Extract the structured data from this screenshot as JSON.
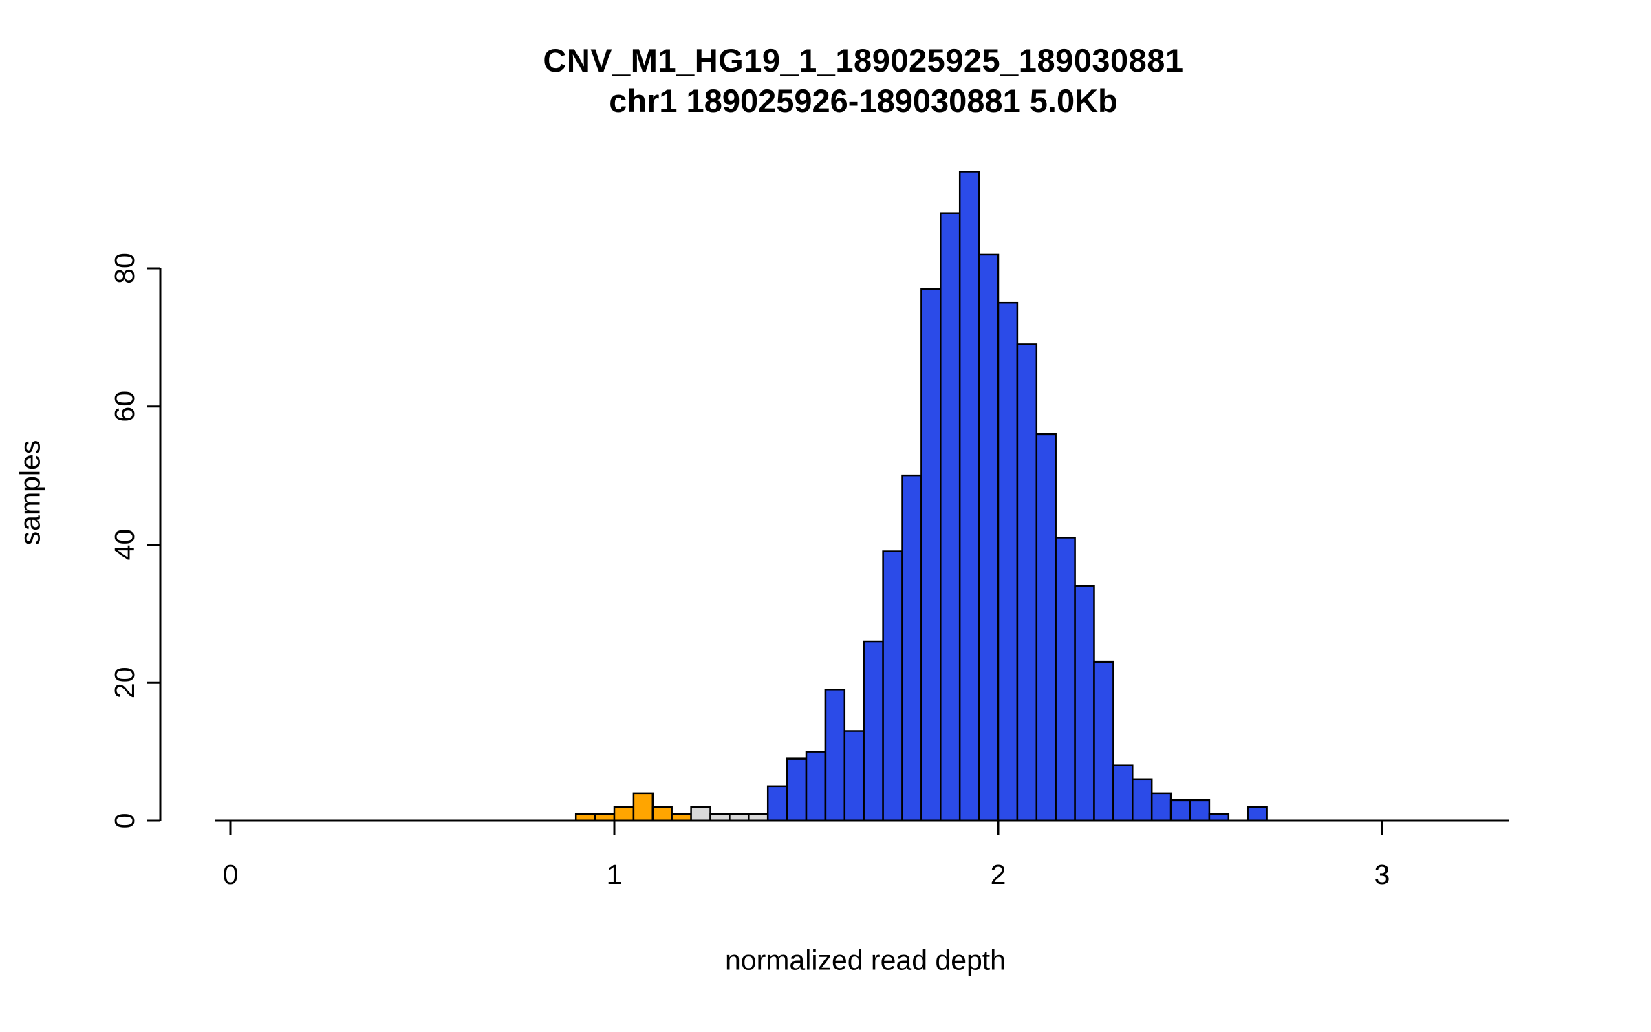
{
  "chart_data": {
    "type": "bar",
    "subtype": "histogram",
    "title": "CNV_M1_HG19_1_189025925_189030881",
    "subtitle": "chr1 189025926-189030881 5.0Kb",
    "xlabel": "normalized read depth",
    "ylabel": "samples",
    "bin_width": 0.05,
    "x_ticks": [
      0,
      1,
      2,
      3
    ],
    "y_ticks": [
      0,
      20,
      40,
      60,
      80
    ],
    "xlim": [
      -0.04,
      3.33
    ],
    "ylim": [
      0,
      94
    ],
    "grid": false,
    "legend": "none",
    "colors": {
      "orange": "#FFA500",
      "gray": "#D9D9D9",
      "blue": "#2B4BE8",
      "axis": "#000000",
      "bar_border": "#000000"
    },
    "bars": [
      {
        "x": 0.9,
        "count": 1,
        "color": "orange"
      },
      {
        "x": 0.95,
        "count": 1,
        "color": "orange"
      },
      {
        "x": 1.0,
        "count": 2,
        "color": "orange"
      },
      {
        "x": 1.05,
        "count": 4,
        "color": "orange"
      },
      {
        "x": 1.1,
        "count": 2,
        "color": "orange"
      },
      {
        "x": 1.15,
        "count": 1,
        "color": "orange"
      },
      {
        "x": 1.2,
        "count": 2,
        "color": "gray"
      },
      {
        "x": 1.25,
        "count": 1,
        "color": "gray"
      },
      {
        "x": 1.3,
        "count": 1,
        "color": "gray"
      },
      {
        "x": 1.35,
        "count": 1,
        "color": "gray"
      },
      {
        "x": 1.4,
        "count": 5,
        "color": "blue"
      },
      {
        "x": 1.45,
        "count": 9,
        "color": "blue"
      },
      {
        "x": 1.5,
        "count": 10,
        "color": "blue"
      },
      {
        "x": 1.55,
        "count": 19,
        "color": "blue"
      },
      {
        "x": 1.6,
        "count": 13,
        "color": "blue"
      },
      {
        "x": 1.65,
        "count": 26,
        "color": "blue"
      },
      {
        "x": 1.7,
        "count": 39,
        "color": "blue"
      },
      {
        "x": 1.75,
        "count": 50,
        "color": "blue"
      },
      {
        "x": 1.8,
        "count": 77,
        "color": "blue"
      },
      {
        "x": 1.85,
        "count": 88,
        "color": "blue"
      },
      {
        "x": 1.9,
        "count": 94,
        "color": "blue"
      },
      {
        "x": 1.95,
        "count": 82,
        "color": "blue"
      },
      {
        "x": 2.0,
        "count": 75,
        "color": "blue"
      },
      {
        "x": 2.05,
        "count": 69,
        "color": "blue"
      },
      {
        "x": 2.1,
        "count": 56,
        "color": "blue"
      },
      {
        "x": 2.15,
        "count": 41,
        "color": "blue"
      },
      {
        "x": 2.2,
        "count": 34,
        "color": "blue"
      },
      {
        "x": 2.25,
        "count": 23,
        "color": "blue"
      },
      {
        "x": 2.3,
        "count": 8,
        "color": "blue"
      },
      {
        "x": 2.35,
        "count": 6,
        "color": "blue"
      },
      {
        "x": 2.4,
        "count": 4,
        "color": "blue"
      },
      {
        "x": 2.45,
        "count": 3,
        "color": "blue"
      },
      {
        "x": 2.5,
        "count": 3,
        "color": "blue"
      },
      {
        "x": 2.55,
        "count": 1,
        "color": "blue"
      },
      {
        "x": 2.6,
        "count": 0,
        "color": "blue"
      },
      {
        "x": 2.65,
        "count": 2,
        "color": "blue"
      }
    ]
  }
}
